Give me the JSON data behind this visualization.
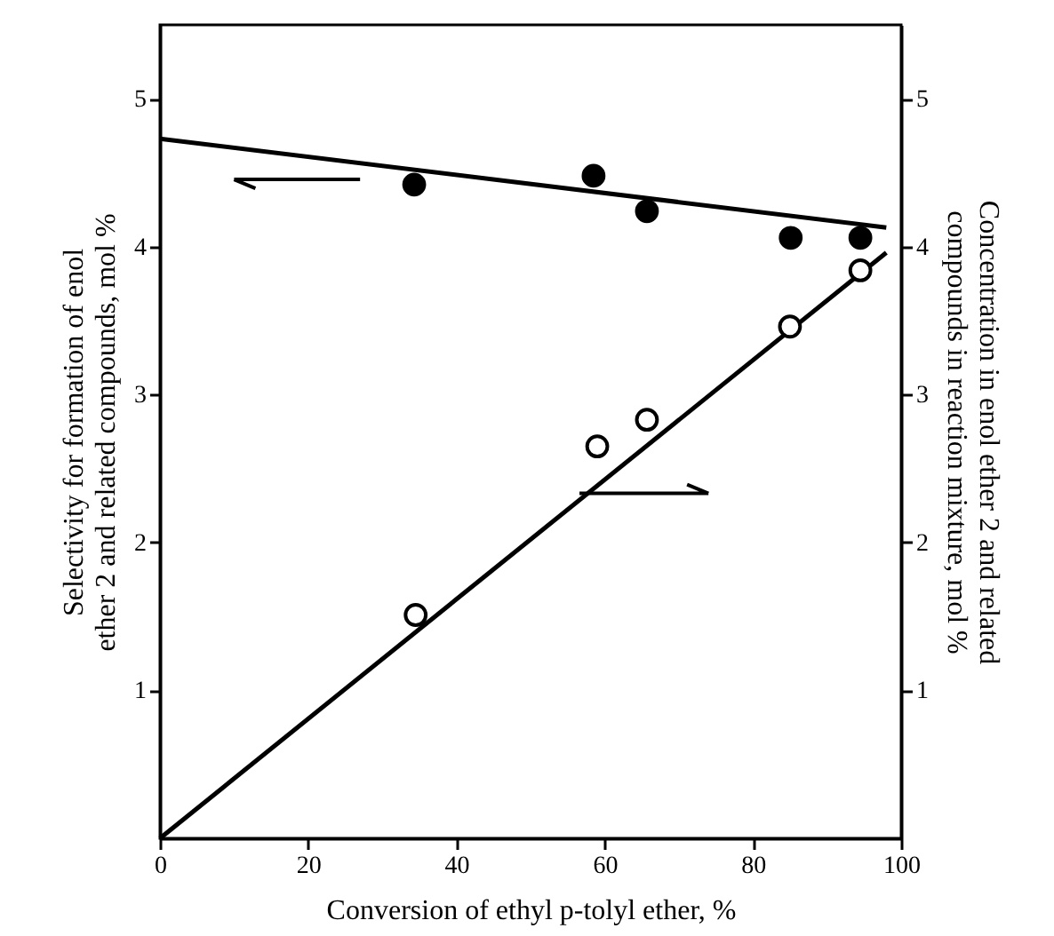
{
  "chart_data": {
    "type": "scatter",
    "xlabel": "Conversion of ethyl p-tolyl ether, %",
    "ylabel": "Selectivity for formation of enol ether 2 and related compounds, mol %",
    "y2label": "Concentration in enol ether 2 and related compounds in reaction mixture, mol %",
    "xlim": [
      0,
      100
    ],
    "xticks": [
      0,
      20,
      40,
      60,
      80,
      100
    ],
    "ylim": [
      0,
      5.5
    ],
    "yticks": [
      1,
      2,
      3,
      4,
      5
    ],
    "y2lim": [
      0,
      5.5
    ],
    "y2ticks": [
      1,
      2,
      3,
      4,
      5
    ],
    "grid": false,
    "series": [
      {
        "marker": "circle",
        "color": "#000000",
        "x": [
          34.3,
          58.5,
          65.7,
          85.1,
          94.5
        ],
        "values": [
          4.42,
          4.48,
          4.24,
          4.06,
          4.06
        ]
      },
      {
        "type": "line",
        "color": "#000000",
        "x": [
          0,
          98
        ],
        "values": [
          4.73,
          4.13
        ]
      },
      {
        "marker": "circle",
        "color": "#ffffff",
        "axis": "y2",
        "x": [
          34.5,
          59,
          65.7,
          85,
          94.5
        ],
        "values": [
          1.51,
          2.65,
          2.83,
          3.46,
          3.84
        ]
      },
      {
        "type": "line",
        "color": "#000000",
        "axis": "y2",
        "x": [
          0,
          98
        ],
        "values": [
          0,
          3.96
        ]
      }
    ]
  }
}
